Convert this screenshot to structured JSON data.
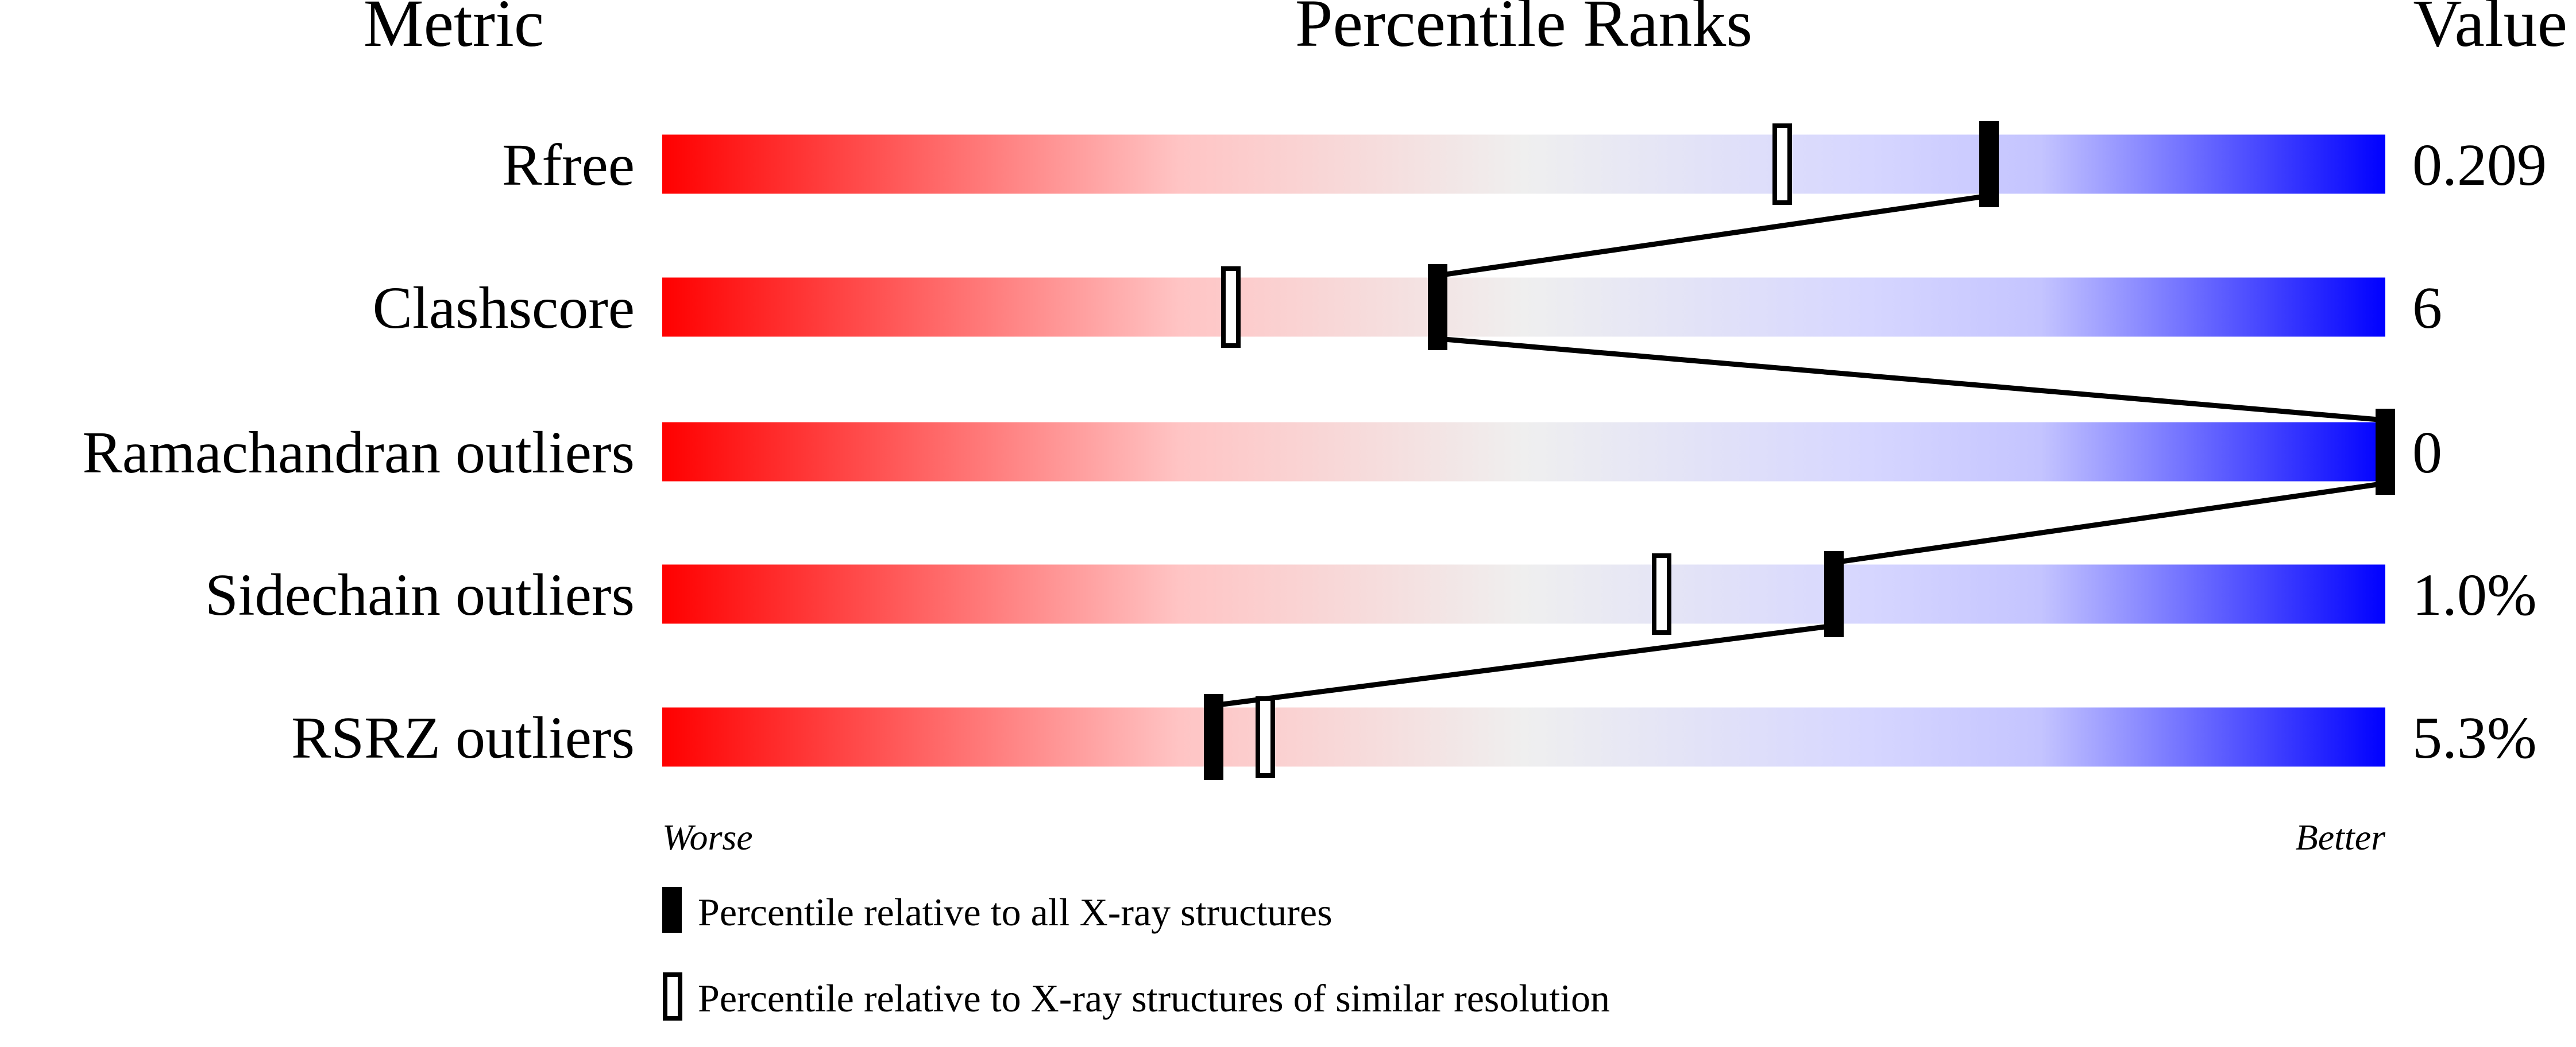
{
  "chart_data": {
    "type": "bar",
    "headers": {
      "metric": "Metric",
      "ranks": "Percentile Ranks",
      "value": "Value"
    },
    "axis_range": [
      0,
      100
    ],
    "axis_ends": {
      "left": "Worse",
      "right": "Better"
    },
    "gradient_colors": {
      "worse": "#ff0000",
      "middle": "#efefef",
      "better": "#0000ff"
    },
    "metrics": [
      {
        "name": "Rfree",
        "value": "0.209",
        "percentile_all": 77,
        "percentile_similar": 65
      },
      {
        "name": "Clashscore",
        "value": "6",
        "percentile_all": 45,
        "percentile_similar": 33
      },
      {
        "name": "Ramachandran outliers",
        "value": "0",
        "percentile_all": 100,
        "percentile_similar": null
      },
      {
        "name": "Sidechain outliers",
        "value": "1.0%",
        "percentile_all": 68,
        "percentile_similar": 58
      },
      {
        "name": "RSRZ outliers",
        "value": "5.3%",
        "percentile_all": 32,
        "percentile_similar": 35
      }
    ],
    "legend": [
      {
        "marker": "filled",
        "label": "Percentile relative to all X-ray structures"
      },
      {
        "marker": "open",
        "label": "Percentile relative to X-ray structures of similar resolution"
      }
    ]
  }
}
